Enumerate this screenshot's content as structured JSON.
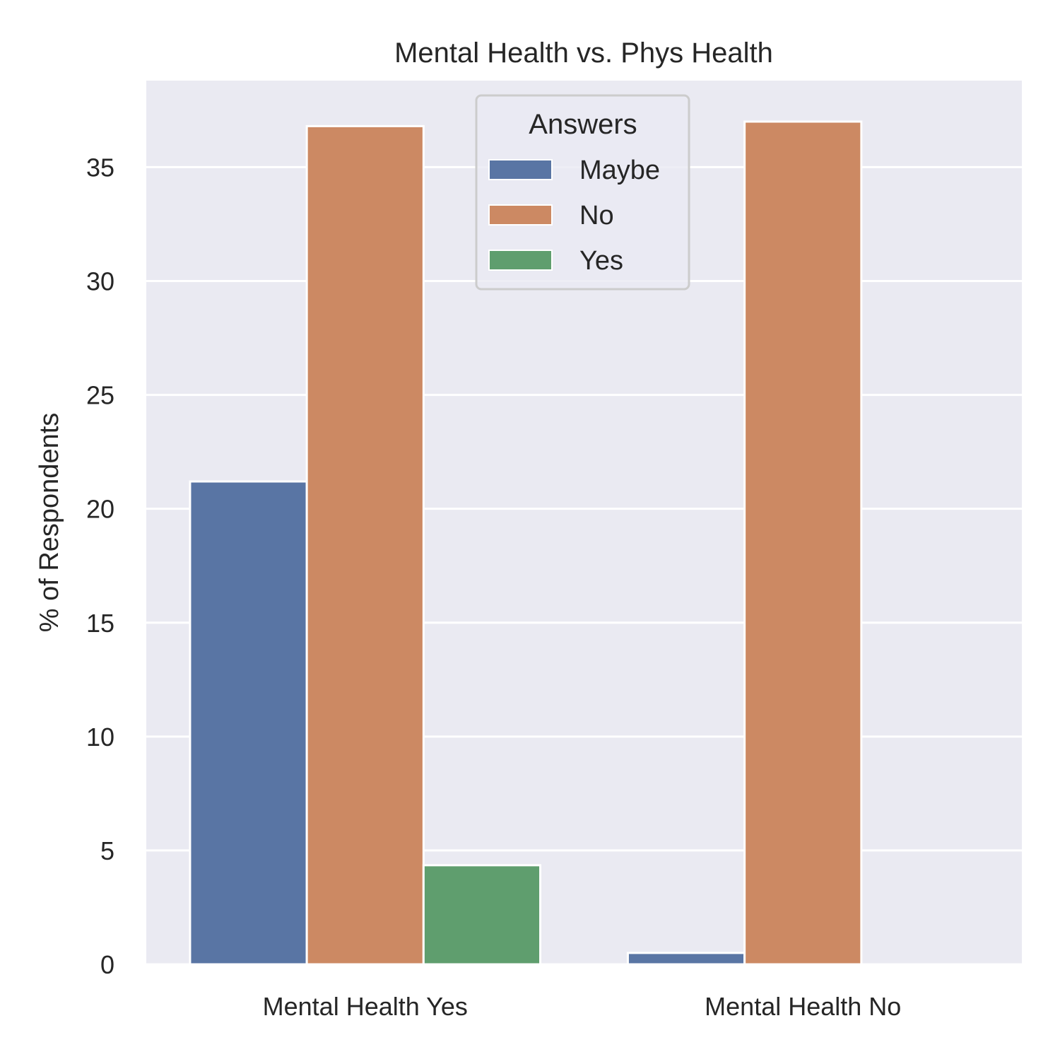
{
  "chart_data": {
    "type": "bar",
    "title": "Mental Health vs. Phys Health",
    "xlabel": "",
    "ylabel": "% of Respondents",
    "categories": [
      "Mental Health Yes",
      "Mental Health No"
    ],
    "series": [
      {
        "name": "Maybe",
        "values": [
          21.2,
          0.5
        ],
        "color": "#5975a4"
      },
      {
        "name": "No",
        "values": [
          36.8,
          37.0
        ],
        "color": "#cc8963"
      },
      {
        "name": "Yes",
        "values": [
          4.35,
          0.0
        ],
        "color": "#5f9e6e"
      }
    ],
    "ylim": [
      0,
      38.8
    ],
    "yticks": [
      0,
      5,
      10,
      15,
      20,
      25,
      30,
      35
    ],
    "grid": true,
    "legend": {
      "title": "Answers",
      "position": "upper-center"
    },
    "background_color": "#eaeaf2",
    "grid_color": "#ffffff"
  }
}
